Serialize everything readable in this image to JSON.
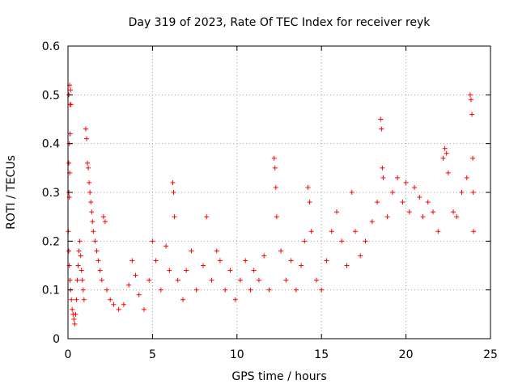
{
  "chart_data": {
    "type": "scatter",
    "title": "Day 319 of 2023, Rate Of TEC Index for receiver reyk",
    "xlabel": "GPS time / hours",
    "ylabel": "ROTI / TECUs",
    "xlim": [
      0,
      25
    ],
    "ylim": [
      0,
      0.6
    ],
    "xticks": [
      0,
      5,
      10,
      15,
      20,
      25
    ],
    "yticks": [
      0,
      0.1,
      0.2,
      0.3,
      0.4,
      0.5,
      0.6
    ],
    "xtick_labels": [
      "0",
      "5",
      "10",
      "15",
      "20",
      "25"
    ],
    "ytick_labels": [
      "0",
      "0.1",
      "0.2",
      "0.3",
      "0.4",
      "0.5",
      "0.6"
    ],
    "grid": true,
    "marker": "+",
    "colors": {
      "points": "#ff0000"
    },
    "series": [
      {
        "points": [
          [
            0.05,
            0.5
          ],
          [
            0.1,
            0.52
          ],
          [
            0.12,
            0.48
          ],
          [
            0.15,
            0.51
          ],
          [
            0.18,
            0.48
          ],
          [
            0.08,
            0.4
          ],
          [
            0.12,
            0.42
          ],
          [
            0.05,
            0.36
          ],
          [
            0.1,
            0.34
          ],
          [
            0.05,
            0.3
          ],
          [
            0.08,
            0.29
          ],
          [
            0.02,
            0.22
          ],
          [
            0.05,
            0.18
          ],
          [
            0.08,
            0.15
          ],
          [
            0.12,
            0.12
          ],
          [
            0.15,
            0.1
          ],
          [
            0.2,
            0.08
          ],
          [
            0.25,
            0.06
          ],
          [
            0.3,
            0.05
          ],
          [
            0.35,
            0.04
          ],
          [
            0.4,
            0.03
          ],
          [
            0.45,
            0.05
          ],
          [
            0.5,
            0.08
          ],
          [
            0.55,
            0.12
          ],
          [
            0.6,
            0.15
          ],
          [
            0.65,
            0.18
          ],
          [
            0.7,
            0.2
          ],
          [
            0.75,
            0.17
          ],
          [
            0.8,
            0.14
          ],
          [
            0.85,
            0.12
          ],
          [
            0.9,
            0.1
          ],
          [
            0.95,
            0.08
          ],
          [
            1.05,
            0.43
          ],
          [
            1.1,
            0.41
          ],
          [
            1.15,
            0.36
          ],
          [
            1.2,
            0.35
          ],
          [
            1.25,
            0.32
          ],
          [
            1.3,
            0.3
          ],
          [
            1.35,
            0.28
          ],
          [
            1.4,
            0.26
          ],
          [
            1.45,
            0.24
          ],
          [
            1.5,
            0.22
          ],
          [
            1.6,
            0.2
          ],
          [
            1.7,
            0.18
          ],
          [
            1.8,
            0.16
          ],
          [
            1.9,
            0.14
          ],
          [
            2.0,
            0.12
          ],
          [
            2.1,
            0.25
          ],
          [
            2.2,
            0.24
          ],
          [
            2.3,
            0.1
          ],
          [
            2.5,
            0.08
          ],
          [
            2.7,
            0.07
          ],
          [
            3.0,
            0.06
          ],
          [
            3.3,
            0.07
          ],
          [
            3.6,
            0.11
          ],
          [
            3.8,
            0.16
          ],
          [
            4.0,
            0.13
          ],
          [
            4.2,
            0.09
          ],
          [
            4.5,
            0.06
          ],
          [
            4.8,
            0.12
          ],
          [
            5.0,
            0.2
          ],
          [
            5.2,
            0.16
          ],
          [
            5.5,
            0.1
          ],
          [
            5.8,
            0.19
          ],
          [
            6.0,
            0.14
          ],
          [
            6.2,
            0.32
          ],
          [
            6.25,
            0.3
          ],
          [
            6.3,
            0.25
          ],
          [
            6.5,
            0.12
          ],
          [
            6.8,
            0.08
          ],
          [
            7.0,
            0.14
          ],
          [
            7.3,
            0.18
          ],
          [
            7.6,
            0.1
          ],
          [
            8.0,
            0.15
          ],
          [
            8.2,
            0.25
          ],
          [
            8.5,
            0.12
          ],
          [
            8.8,
            0.18
          ],
          [
            9.0,
            0.16
          ],
          [
            9.3,
            0.1
          ],
          [
            9.6,
            0.14
          ],
          [
            9.9,
            0.08
          ],
          [
            10.2,
            0.12
          ],
          [
            10.5,
            0.16
          ],
          [
            10.8,
            0.1
          ],
          [
            11.0,
            0.14
          ],
          [
            11.3,
            0.12
          ],
          [
            11.6,
            0.17
          ],
          [
            11.9,
            0.1
          ],
          [
            12.2,
            0.37
          ],
          [
            12.25,
            0.35
          ],
          [
            12.3,
            0.31
          ],
          [
            12.35,
            0.25
          ],
          [
            12.6,
            0.18
          ],
          [
            12.9,
            0.12
          ],
          [
            13.2,
            0.16
          ],
          [
            13.5,
            0.1
          ],
          [
            13.8,
            0.15
          ],
          [
            14.0,
            0.2
          ],
          [
            14.2,
            0.31
          ],
          [
            14.3,
            0.28
          ],
          [
            14.4,
            0.22
          ],
          [
            14.7,
            0.12
          ],
          [
            15.0,
            0.1
          ],
          [
            15.3,
            0.16
          ],
          [
            15.6,
            0.22
          ],
          [
            15.9,
            0.26
          ],
          [
            16.2,
            0.2
          ],
          [
            16.5,
            0.15
          ],
          [
            16.8,
            0.3
          ],
          [
            17.0,
            0.22
          ],
          [
            17.3,
            0.17
          ],
          [
            17.6,
            0.2
          ],
          [
            18.0,
            0.24
          ],
          [
            18.3,
            0.28
          ],
          [
            18.5,
            0.45
          ],
          [
            18.55,
            0.43
          ],
          [
            18.6,
            0.35
          ],
          [
            18.65,
            0.33
          ],
          [
            18.9,
            0.25
          ],
          [
            19.2,
            0.3
          ],
          [
            19.5,
            0.33
          ],
          [
            19.8,
            0.28
          ],
          [
            20.0,
            0.32
          ],
          [
            20.2,
            0.26
          ],
          [
            20.5,
            0.31
          ],
          [
            20.8,
            0.29
          ],
          [
            21.0,
            0.25
          ],
          [
            21.3,
            0.28
          ],
          [
            21.6,
            0.26
          ],
          [
            21.9,
            0.22
          ],
          [
            22.2,
            0.37
          ],
          [
            22.3,
            0.39
          ],
          [
            22.4,
            0.38
          ],
          [
            22.5,
            0.34
          ],
          [
            22.8,
            0.26
          ],
          [
            23.0,
            0.25
          ],
          [
            23.3,
            0.3
          ],
          [
            23.6,
            0.33
          ],
          [
            23.8,
            0.5
          ],
          [
            23.85,
            0.49
          ],
          [
            23.9,
            0.46
          ],
          [
            23.95,
            0.37
          ],
          [
            23.98,
            0.3
          ],
          [
            24.0,
            0.22
          ]
        ]
      }
    ]
  }
}
